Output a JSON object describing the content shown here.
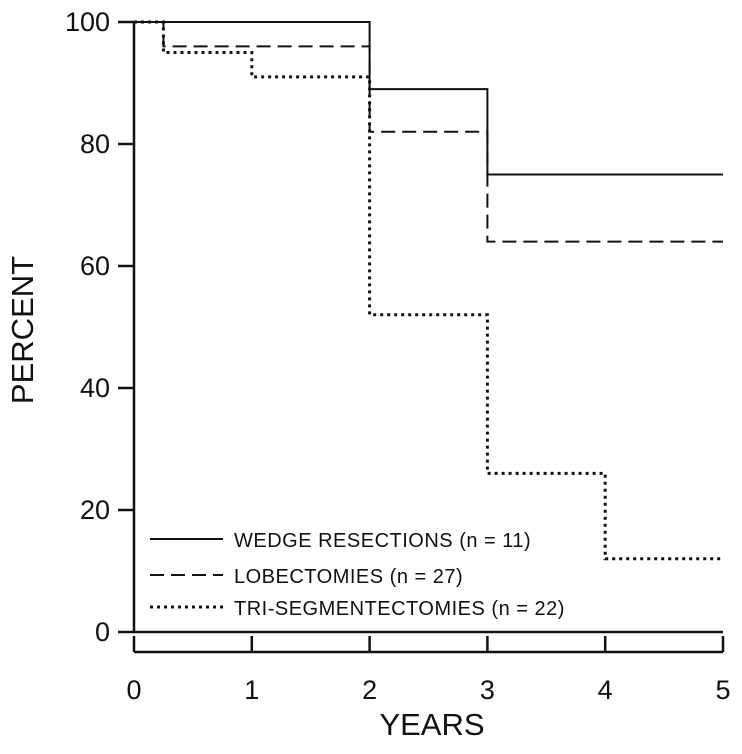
{
  "chart_data": {
    "type": "line",
    "subtype": "step",
    "title": "",
    "xlabel": "YEARS",
    "ylabel": "PERCENT",
    "xlim": [
      0,
      5
    ],
    "ylim": [
      0,
      100
    ],
    "x_ticks": [
      "0",
      "1",
      "2",
      "3",
      "4",
      "5"
    ],
    "y_ticks": [
      "0",
      "20",
      "40",
      "60",
      "80",
      "100"
    ],
    "grid": false,
    "legend_position": "bottom-left",
    "series": [
      {
        "name": "WEDGE RESECTIONS",
        "n_label": "(n = 11)",
        "style": "solid",
        "x": [
          0,
          2,
          3,
          5
        ],
        "y": [
          100,
          89,
          75,
          75
        ]
      },
      {
        "name": "LOBECTOMIES",
        "n_label": "(n = 27)",
        "style": "dashed",
        "x": [
          0,
          0.25,
          2,
          3,
          5
        ],
        "y": [
          100,
          96,
          82,
          64,
          64
        ]
      },
      {
        "name": "TRI-SEGMENTECTOMIES",
        "n_label": "(n = 22)",
        "style": "dotted",
        "x": [
          0,
          0.25,
          1,
          2,
          3,
          4,
          5
        ],
        "y": [
          100,
          95,
          91,
          52,
          26,
          12,
          12
        ]
      }
    ],
    "colors": {
      "line": "#111111",
      "background": "#ffffff"
    }
  }
}
